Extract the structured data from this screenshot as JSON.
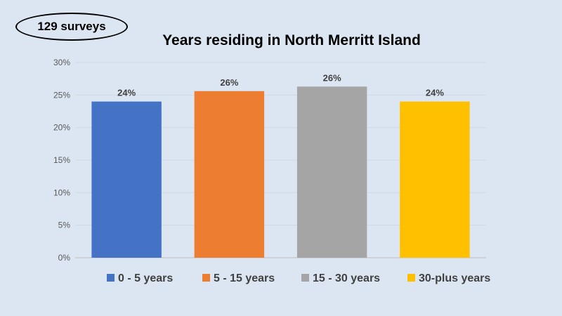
{
  "badge": {
    "text": "129 surveys"
  },
  "chart_data": {
    "type": "bar",
    "title": "Years residing in North Merritt Island",
    "categories": [
      "0 - 5 years",
      "5 - 15 years",
      "15 - 30 years",
      "30-plus years"
    ],
    "values": [
      24,
      25.6,
      26.3,
      24
    ],
    "data_labels": [
      "24%",
      "26%",
      "26%",
      "24%"
    ],
    "colors": [
      "#4472c4",
      "#ed7d31",
      "#a5a5a5",
      "#ffc000"
    ],
    "ylim": [
      0,
      30
    ],
    "yticks": [
      0,
      5,
      10,
      15,
      20,
      25,
      30
    ],
    "ytick_labels": [
      "0%",
      "5%",
      "10%",
      "15%",
      "20%",
      "25%",
      "30%"
    ],
    "xlabel": "",
    "ylabel": "",
    "grid": true,
    "legend": "bottom"
  }
}
